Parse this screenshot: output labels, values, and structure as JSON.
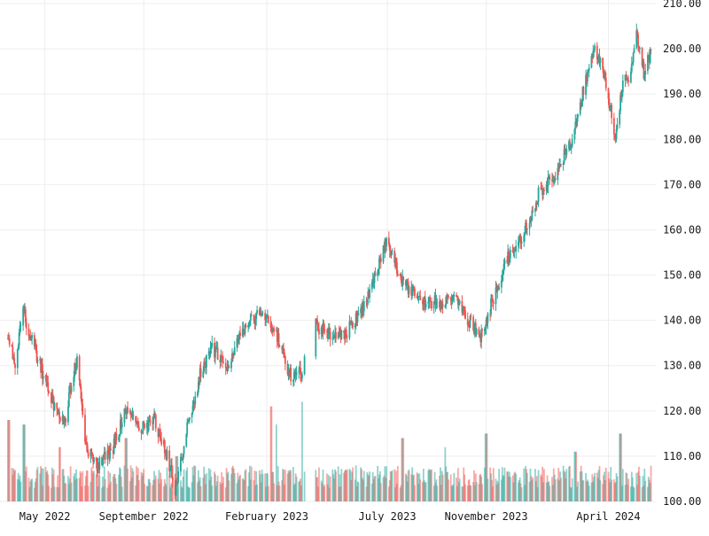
{
  "chart_data": {
    "type": "candlestick",
    "title": "",
    "xlabel": "",
    "ylabel": "",
    "ylim": [
      100,
      210
    ],
    "grid": true,
    "legend": "none",
    "y_ticks": [
      "100.00",
      "110.00",
      "120.00",
      "130.00",
      "140.00",
      "150.00",
      "160.00",
      "170.00",
      "180.00",
      "190.00",
      "200.00",
      "210.00"
    ],
    "x_tick_labels": [
      "May 2022",
      "September 2022",
      "February 2023",
      "July 2023",
      "November 2023",
      "April 2024"
    ],
    "x_tick_dates": [
      "2022-05-01",
      "2022-09-01",
      "2023-02-01",
      "2023-07-01",
      "2023-11-01",
      "2024-04-01"
    ],
    "x_range": [
      "2022-03-15",
      "2024-05-30"
    ],
    "price_anchors": [
      [
        "2022-03-16",
        136
      ],
      [
        "2022-03-25",
        131
      ],
      [
        "2022-04-04",
        142
      ],
      [
        "2022-04-20",
        133
      ],
      [
        "2022-05-12",
        121
      ],
      [
        "2022-05-26",
        118
      ],
      [
        "2022-06-10",
        132
      ],
      [
        "2022-06-20",
        112
      ],
      [
        "2022-07-05",
        108
      ],
      [
        "2022-07-25",
        112
      ],
      [
        "2022-08-10",
        120
      ],
      [
        "2022-08-25",
        116
      ],
      [
        "2022-09-15",
        118
      ],
      [
        "2022-09-30",
        110
      ],
      [
        "2022-10-10",
        103
      ],
      [
        "2022-10-25",
        116
      ],
      [
        "2022-11-10",
        128
      ],
      [
        "2022-11-25",
        134
      ],
      [
        "2022-12-15",
        130
      ],
      [
        "2023-01-05",
        139
      ],
      [
        "2023-01-25",
        142
      ],
      [
        "2023-02-15",
        136
      ],
      [
        "2023-03-01",
        128
      ],
      [
        "2023-03-15",
        128
      ],
      [
        "2023-04-01",
        139
      ],
      [
        "2023-04-20",
        137
      ],
      [
        "2023-05-10",
        137
      ],
      [
        "2023-05-26",
        141
      ],
      [
        "2023-06-15",
        149
      ],
      [
        "2023-06-30",
        158
      ],
      [
        "2023-07-15",
        150
      ],
      [
        "2023-08-01",
        146
      ],
      [
        "2023-08-20",
        144
      ],
      [
        "2023-09-05",
        144
      ],
      [
        "2023-09-20",
        145
      ],
      [
        "2023-10-10",
        140
      ],
      [
        "2023-10-25",
        136
      ],
      [
        "2023-11-10",
        145
      ],
      [
        "2023-11-25",
        153
      ],
      [
        "2023-12-15",
        158
      ],
      [
        "2024-01-05",
        168
      ],
      [
        "2024-01-25",
        172
      ],
      [
        "2024-02-15",
        180
      ],
      [
        "2024-03-01",
        191
      ],
      [
        "2024-03-15",
        200
      ],
      [
        "2024-03-25",
        196
      ],
      [
        "2024-04-10",
        180
      ],
      [
        "2024-04-20",
        194
      ],
      [
        "2024-04-28",
        192
      ],
      [
        "2024-05-05",
        204
      ],
      [
        "2024-05-15",
        195
      ],
      [
        "2024-05-25",
        200
      ]
    ],
    "data_gaps": [
      [
        "2023-03-21",
        "2023-04-02"
      ]
    ],
    "volume": {
      "baseline": 100,
      "typical_top": 107,
      "spikes": [
        [
          "2022-03-17",
          118
        ],
        [
          "2022-04-05",
          117
        ],
        [
          "2022-05-20",
          112
        ],
        [
          "2022-08-10",
          114
        ],
        [
          "2022-10-12",
          110
        ],
        [
          "2023-02-06",
          121
        ],
        [
          "2023-02-12",
          117
        ],
        [
          "2023-03-18",
          122
        ],
        [
          "2023-07-20",
          114
        ],
        [
          "2023-09-10",
          112
        ],
        [
          "2023-11-01",
          115
        ],
        [
          "2024-02-20",
          111
        ],
        [
          "2024-04-16",
          115
        ],
        [
          "2024-05-28",
          110
        ]
      ]
    },
    "up_color": "#26a69a",
    "down_color": "#ef5350"
  }
}
